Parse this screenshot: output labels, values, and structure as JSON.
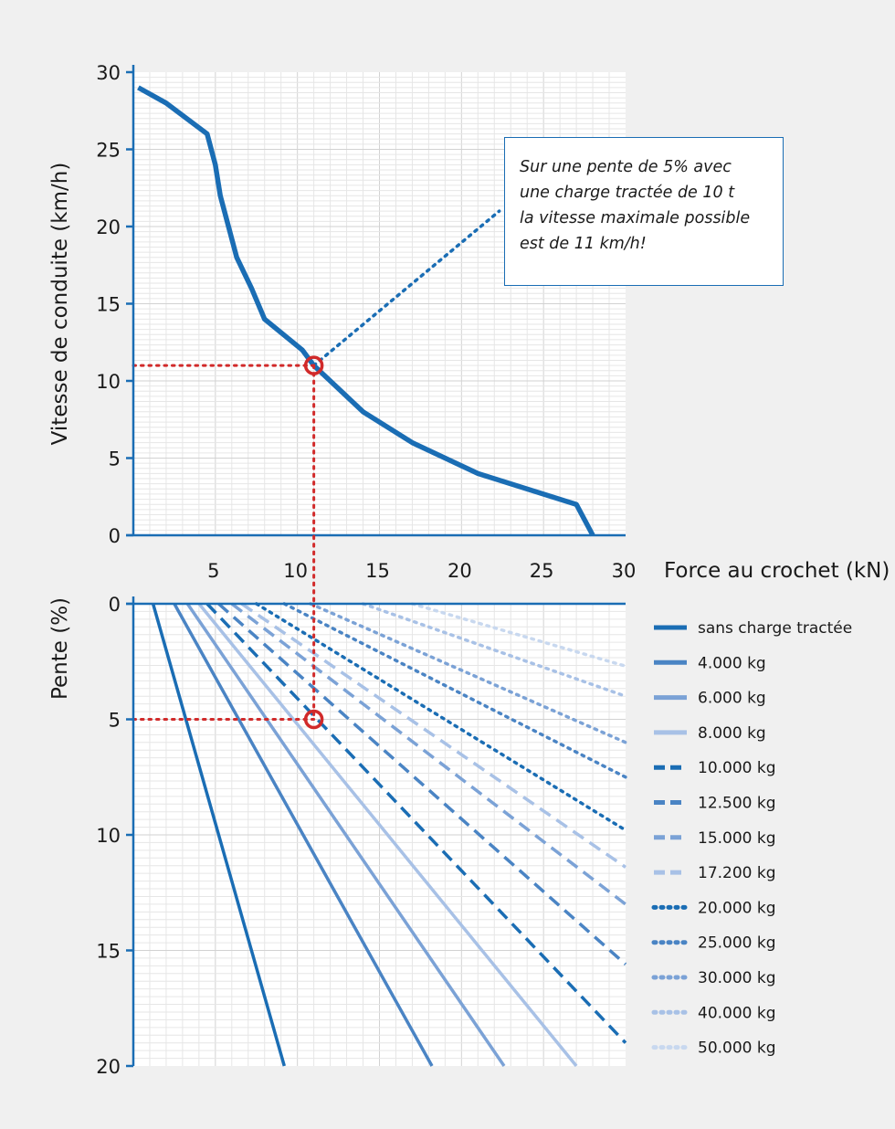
{
  "chart_data": [
    {
      "type": "line",
      "title": "",
      "xlabel": "Force au crochet (kN)",
      "ylabel": "Vitesse de conduite (km/h)",
      "xlim": [
        0,
        30
      ],
      "ylim": [
        0,
        30
      ],
      "x_ticks": [
        5,
        10,
        15,
        20,
        25,
        30
      ],
      "y_ticks": [
        0,
        5,
        10,
        15,
        20,
        25,
        30
      ],
      "grid": true,
      "series": [
        {
          "x": [
            0.3,
            2,
            4.5,
            5,
            5.3,
            5.8,
            6.3,
            7.2,
            8,
            10.3,
            11,
            12,
            14,
            17,
            21,
            27,
            28
          ],
          "y": [
            29,
            28,
            26,
            24,
            22,
            20,
            18,
            16,
            14,
            12,
            11,
            10,
            8,
            6,
            4,
            2,
            0
          ]
        }
      ],
      "projection_line": {
        "x": [
          11,
          22.3
        ],
        "y": [
          11,
          21
        ],
        "style": "dotted"
      },
      "marker": {
        "x": 11,
        "y": 11
      },
      "guide_lines": [
        {
          "x": [
            0,
            11
          ],
          "y": [
            11,
            11
          ],
          "style": "dotted",
          "color": "#d12a2a"
        }
      ],
      "annotation": {
        "lines": [
          "Sur une pente de 5% avec",
          "une charge tractée de 10 t",
          "la vitesse maximale possible",
          "est de 11 km/h!"
        ]
      }
    },
    {
      "type": "line",
      "title": "",
      "xlabel": "",
      "ylabel": "Pente (%)",
      "xlim": [
        0,
        30
      ],
      "ylim": [
        0,
        20
      ],
      "y_inverted": true,
      "y_ticks": [
        0,
        5,
        10,
        15,
        20
      ],
      "grid": true,
      "legend_position": "right",
      "series": [
        {
          "name": "sans charge tractée",
          "x": [
            1.2,
            9.2
          ],
          "y": [
            0,
            20
          ],
          "color": "#1a6db4",
          "style": "solid"
        },
        {
          "name": "4.000 kg",
          "x": [
            2.5,
            18.2
          ],
          "y": [
            0,
            20
          ],
          "color": "#4a84c4",
          "style": "solid"
        },
        {
          "name": "6.000 kg",
          "x": [
            3.3,
            22.6
          ],
          "y": [
            0,
            20
          ],
          "color": "#7ba2d6",
          "style": "solid"
        },
        {
          "name": "8.000 kg",
          "x": [
            4,
            27
          ],
          "y": [
            0,
            20
          ],
          "color": "#a8c1e6",
          "style": "solid"
        },
        {
          "name": "10.000 kg",
          "x": [
            4.5,
            30
          ],
          "y": [
            0,
            19
          ],
          "color": "#1a6db4",
          "style": "dashed"
        },
        {
          "name": "12.500 kg",
          "x": [
            5.2,
            30
          ],
          "y": [
            0,
            15.6
          ],
          "color": "#4a84c4",
          "style": "dashed"
        },
        {
          "name": "15.000 kg",
          "x": [
            6,
            30
          ],
          "y": [
            0,
            13
          ],
          "color": "#7ba2d6",
          "style": "dashed"
        },
        {
          "name": "17.200 kg",
          "x": [
            6.6,
            30
          ],
          "y": [
            0,
            11.4
          ],
          "color": "#a8c1e6",
          "style": "dashed"
        },
        {
          "name": "20.000 kg",
          "x": [
            7.5,
            30
          ],
          "y": [
            0,
            9.8
          ],
          "color": "#1a6db4",
          "style": "dotted"
        },
        {
          "name": "25.000 kg",
          "x": [
            9.2,
            30
          ],
          "y": [
            0,
            7.5
          ],
          "color": "#4a84c4",
          "style": "dotted"
        },
        {
          "name": "30.000 kg",
          "x": [
            10.8,
            30
          ],
          "y": [
            0,
            6
          ],
          "color": "#7ba2d6",
          "style": "dotted"
        },
        {
          "name": "40.000 kg",
          "x": [
            14,
            30
          ],
          "y": [
            0,
            4
          ],
          "color": "#a8c1e6",
          "style": "dotted"
        },
        {
          "name": "50.000 kg",
          "x": [
            17,
            30
          ],
          "y": [
            0,
            2.7
          ],
          "color": "#c8d8ef",
          "style": "dotted"
        }
      ],
      "marker": {
        "x": 11,
        "y": 5
      },
      "guide_lines": [
        {
          "x": [
            0,
            11
          ],
          "y": [
            5,
            5
          ],
          "style": "dotted",
          "color": "#d12a2a"
        },
        {
          "x": [
            11,
            11
          ],
          "y": [
            0,
            5
          ],
          "style": "dotted",
          "color": "#d12a2a"
        }
      ]
    }
  ],
  "connector": {
    "x": 11,
    "from_speed": 11,
    "to_grade": 0,
    "style": "dotted",
    "color": "#d12a2a"
  }
}
